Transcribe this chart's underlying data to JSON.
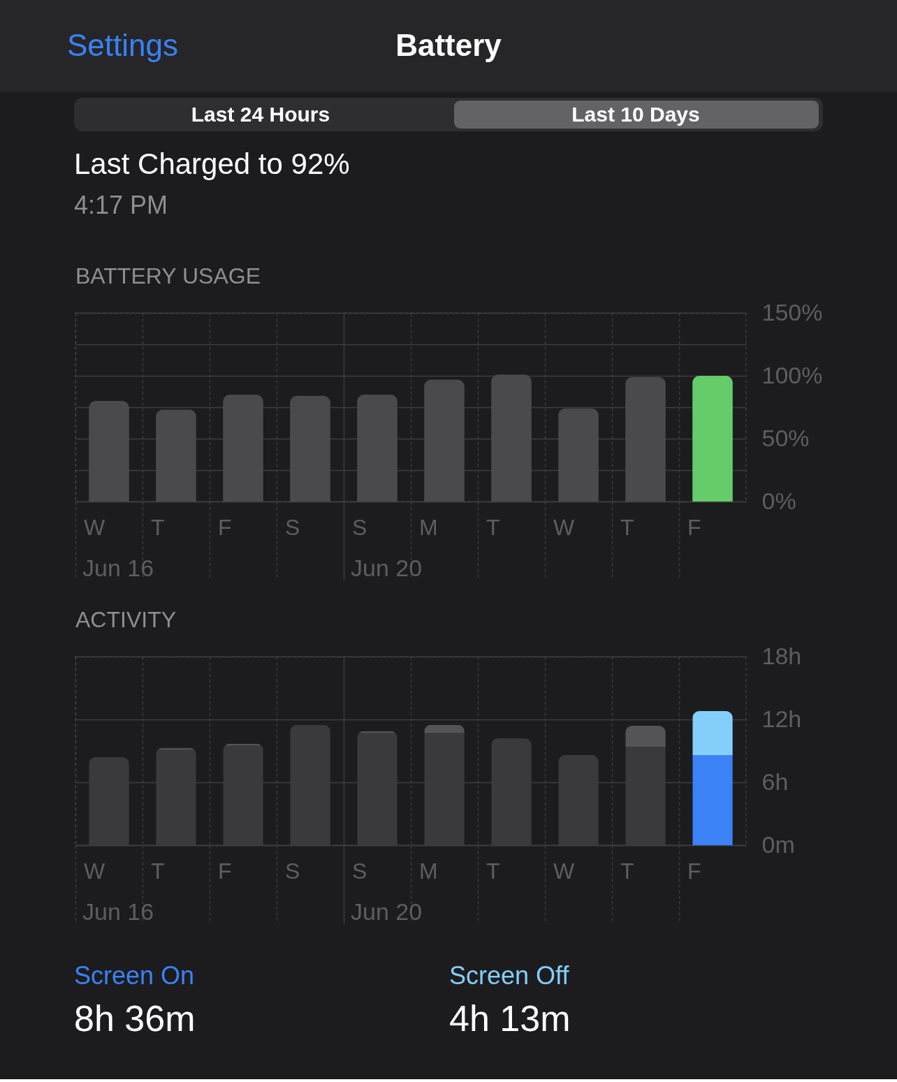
{
  "chart_data": [
    {
      "type": "bar",
      "title": "BATTERY USAGE",
      "annotations": [
        "Settings",
        "Battery",
        "Last 24 Hours",
        "Last 10 Days",
        "Last Charged to 92%",
        "4:17 PM",
        "Jun 16",
        "Jun 20"
      ],
      "categories": [
        "W",
        "T",
        "F",
        "S",
        "S",
        "M",
        "T",
        "W",
        "T",
        "F"
      ],
      "values": [
        80,
        73,
        85,
        84,
        85,
        97,
        101,
        74,
        99,
        100
      ],
      "colors": [
        "#4a4a4c",
        "#4a4a4c",
        "#4a4a4c",
        "#4a4a4c",
        "#4a4a4c",
        "#4a4a4c",
        "#4a4a4c",
        "#4a4a4c",
        "#4a4a4c",
        "#65cc69"
      ],
      "ylim": [
        0,
        150
      ],
      "yticks": [
        {
          "value": 0,
          "label": "0%"
        },
        {
          "value": 25,
          "label": null
        },
        {
          "value": 50,
          "label": "50%"
        },
        {
          "value": 75,
          "label": null
        },
        {
          "value": 100,
          "label": "100%"
        },
        {
          "value": 125,
          "label": null
        },
        {
          "value": 150,
          "label": "150%"
        }
      ],
      "grid": true
    },
    {
      "type": "bar",
      "title": "ACTIVITY",
      "stacked": true,
      "annotations": [
        "Jun 16",
        "Jun 20",
        "8h 36m",
        "4h 13m"
      ],
      "categories": [
        "W",
        "T",
        "F",
        "S",
        "S",
        "M",
        "T",
        "W",
        "T",
        "F"
      ],
      "series": [
        {
          "name": "Screen On",
          "color": "#3b82f6",
          "colors": [
            "#3a3a3c",
            "#3a3a3c",
            "#3a3a3c",
            "#3a3a3c",
            "#3a3a3c",
            "#3a3a3c",
            "#3a3a3c",
            "#3a3a3c",
            "#3a3a3c",
            "#3b82f6"
          ],
          "values": [
            8.4,
            9.1,
            9.5,
            11.5,
            10.7,
            10.7,
            10.2,
            8.6,
            9.4,
            8.6
          ]
        },
        {
          "name": "Screen Off",
          "color": "#83cffa",
          "colors": [
            "#545456",
            "#545456",
            "#545456",
            "#545456",
            "#545456",
            "#545456",
            "#545456",
            "#545456",
            "#545456",
            "#83cffa"
          ],
          "values": [
            null,
            0.2,
            0.2,
            null,
            0.2,
            0.8,
            null,
            null,
            2.0,
            4.2
          ]
        }
      ],
      "ylim": [
        0,
        18
      ],
      "yticks": [
        {
          "value": 0,
          "label": "0m"
        },
        {
          "value": 6,
          "label": "6h"
        },
        {
          "value": 12,
          "label": "12h"
        },
        {
          "value": 18,
          "label": "18h"
        }
      ],
      "grid": true,
      "legend": "bottom"
    }
  ]
}
